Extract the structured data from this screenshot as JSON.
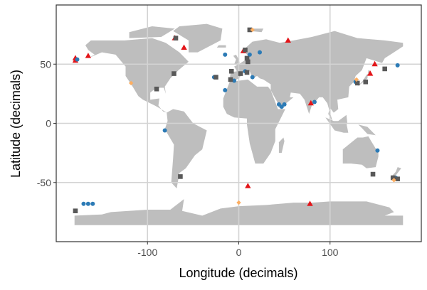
{
  "chart_data": {
    "type": "scatter",
    "title": "",
    "xlabel": "Longitude (decimals)",
    "ylabel": "Latitude (decimals)",
    "xlim": [
      -200,
      200
    ],
    "ylim": [
      -100,
      100
    ],
    "x_ticks": [
      -100,
      0,
      100
    ],
    "x_tick_labels": [
      "-100",
      "0",
      "100"
    ],
    "y_ticks": [
      -50,
      0,
      50
    ],
    "y_tick_labels": [
      "-50",
      "0",
      "50"
    ],
    "grid": true,
    "legend": "none",
    "background": "world map (land in grey)",
    "colors": {
      "land": "#bebebe",
      "grid": "#d3d3d3",
      "red": "#e3161a",
      "blue": "#2c7bb6",
      "grey": "#595959",
      "orange": "#fdae61"
    },
    "series": [
      {
        "name": "red-triangle",
        "shape": "triangle",
        "color": "#e3161a",
        "points": [
          [
            -179,
            55
          ],
          [
            -179,
            53
          ],
          [
            -165,
            57
          ],
          [
            -70,
            72
          ],
          [
            -60,
            64
          ],
          [
            5,
            61
          ],
          [
            54,
            70
          ],
          [
            79,
            17
          ],
          [
            149,
            50
          ],
          [
            144,
            42
          ],
          [
            10,
            -53
          ],
          [
            78,
            -68
          ]
        ]
      },
      {
        "name": "blue-circle",
        "shape": "circle",
        "color": "#2c7bb6",
        "points": [
          [
            -177,
            54
          ],
          [
            -15,
            58
          ],
          [
            -27,
            39
          ],
          [
            -25,
            39
          ],
          [
            -5,
            36
          ],
          [
            -15,
            28
          ],
          [
            -81,
            -6
          ],
          [
            12,
            58
          ],
          [
            23,
            60
          ],
          [
            7,
            44
          ],
          [
            15,
            39
          ],
          [
            44,
            16
          ],
          [
            50,
            16
          ],
          [
            47,
            14
          ],
          [
            83,
            18
          ],
          [
            128,
            35
          ],
          [
            174,
            49
          ],
          [
            152,
            -23
          ],
          [
            172,
            -46
          ],
          [
            -170,
            -68
          ],
          [
            -165,
            -68
          ],
          [
            -160,
            -68
          ]
        ]
      },
      {
        "name": "grey-square",
        "shape": "square",
        "color": "#595959",
        "points": [
          [
            -69,
            72
          ],
          [
            -71,
            42
          ],
          [
            -90,
            29
          ],
          [
            -25,
            39
          ],
          [
            -8,
            44
          ],
          [
            -9,
            37
          ],
          [
            2,
            42
          ],
          [
            12,
            79
          ],
          [
            7,
            62
          ],
          [
            9,
            55
          ],
          [
            10,
            52
          ],
          [
            9,
            43
          ],
          [
            130,
            34
          ],
          [
            139,
            35
          ],
          [
            160,
            46
          ],
          [
            -64,
            -45
          ],
          [
            -179,
            -74
          ],
          [
            147,
            -43
          ],
          [
            169,
            -46
          ],
          [
            174,
            -47
          ]
        ]
      },
      {
        "name": "orange-diamond",
        "shape": "diamond",
        "color": "#fdae61",
        "points": [
          [
            -118,
            34
          ],
          [
            15,
            79
          ],
          [
            129,
            37
          ],
          [
            0,
            -67
          ],
          [
            170,
            -48
          ]
        ]
      }
    ]
  }
}
